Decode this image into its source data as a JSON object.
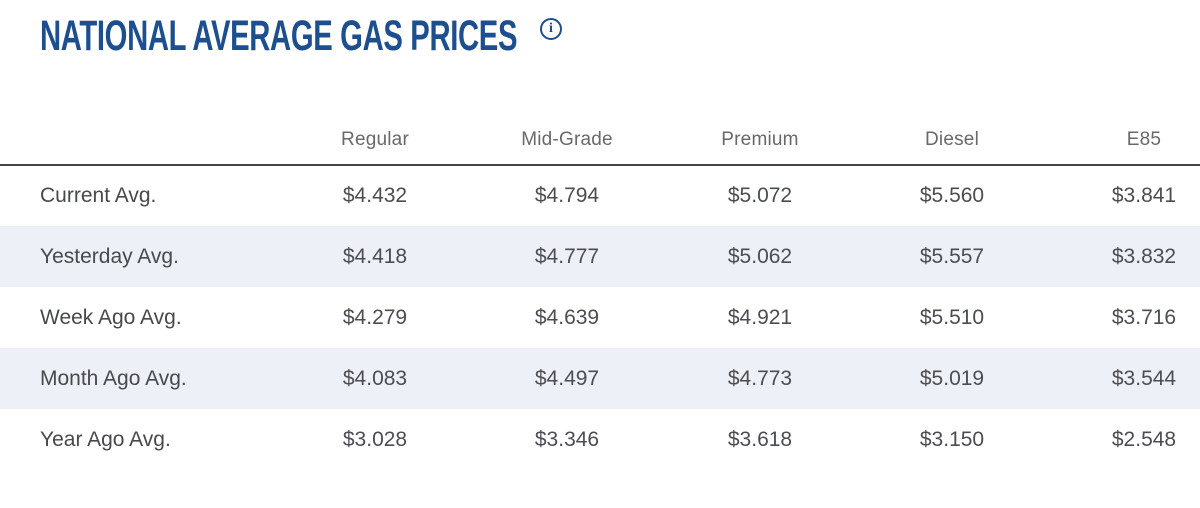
{
  "chart_data": {
    "type": "table",
    "title": "NATIONAL AVERAGE GAS PRICES",
    "columns": [
      "",
      "Regular",
      "Mid-Grade",
      "Premium",
      "Diesel",
      "E85"
    ],
    "rows": [
      {
        "label": "Current Avg.",
        "values": [
          "$4.432",
          "$4.794",
          "$5.072",
          "$5.560",
          "$3.841"
        ]
      },
      {
        "label": "Yesterday Avg.",
        "values": [
          "$4.418",
          "$4.777",
          "$5.062",
          "$5.557",
          "$3.832"
        ]
      },
      {
        "label": "Week Ago Avg.",
        "values": [
          "$4.279",
          "$4.639",
          "$4.921",
          "$5.510",
          "$3.716"
        ]
      },
      {
        "label": "Month Ago Avg.",
        "values": [
          "$4.083",
          "$4.497",
          "$4.773",
          "$5.019",
          "$3.544"
        ]
      },
      {
        "label": "Year Ago Avg.",
        "values": [
          "$3.028",
          "$3.346",
          "$3.618",
          "$3.150",
          "$2.548"
        ]
      }
    ],
    "layout": {
      "striped_rows": "even",
      "value_alignment": "center",
      "label_alignment": "left"
    }
  },
  "info_icon": {
    "glyph": "i"
  },
  "colors": {
    "title": "#1d4e8e",
    "header-text": "#69696c",
    "cell-text": "#4b4d52",
    "label-text": "#47494d",
    "stripe": "#edf0f6",
    "divider": "#454545",
    "bg": "#ffffff"
  }
}
